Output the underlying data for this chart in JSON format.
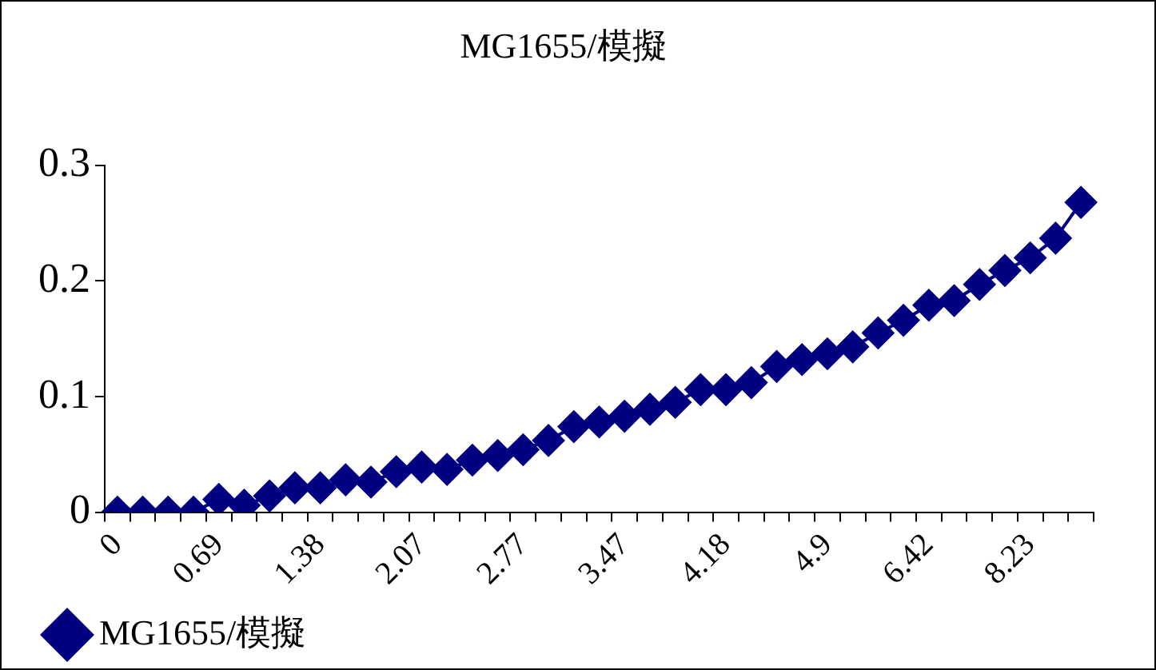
{
  "chart_data": {
    "type": "line",
    "title": "MG1655/模擬",
    "categories": [
      "0",
      null,
      null,
      null,
      "0.69",
      null,
      null,
      null,
      "1.38",
      null,
      null,
      null,
      "2.07",
      null,
      null,
      null,
      "2.77",
      null,
      null,
      null,
      "3.47",
      null,
      null,
      null,
      "4.18",
      null,
      null,
      null,
      "4.9",
      null,
      null,
      null,
      "6.42",
      null,
      null,
      null,
      "8.23",
      null,
      null
    ],
    "series": [
      {
        "name": "MG1655/模擬",
        "color": "#000080",
        "values": [
          0,
          0,
          0,
          0,
          0.011,
          0.006,
          0.014,
          0.021,
          0.021,
          0.028,
          0.026,
          0.035,
          0.039,
          0.037,
          0.045,
          0.049,
          0.054,
          0.062,
          0.074,
          0.078,
          0.083,
          0.089,
          0.095,
          0.106,
          0.106,
          0.112,
          0.126,
          0.132,
          0.137,
          0.143,
          0.155,
          0.166,
          0.179,
          0.183,
          0.197,
          0.209,
          0.22,
          0.237,
          0.268
        ]
      }
    ],
    "ylim": [
      0,
      0.3
    ],
    "yticks": [
      0,
      0.1,
      0.2,
      0.3
    ],
    "grid": false,
    "legend": "bottom",
    "marker": "diamond",
    "line_style": "solid"
  }
}
